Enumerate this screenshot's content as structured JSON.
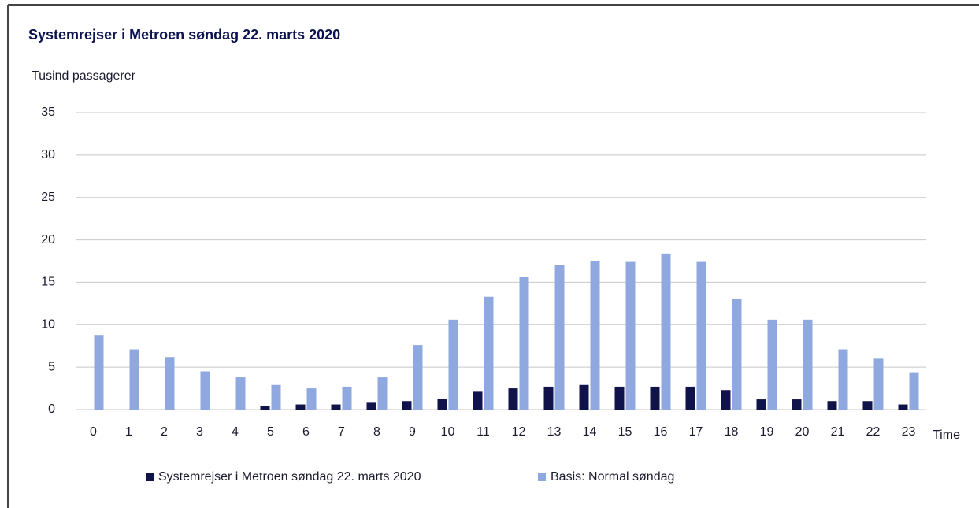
{
  "chart_data": {
    "type": "bar",
    "title": "Systemrejser i Metroen søndag 22. marts 2020",
    "y_label": "Tusind passagerer",
    "x_label": "Time",
    "categories": [
      "0",
      "1",
      "2",
      "3",
      "4",
      "5",
      "6",
      "7",
      "8",
      "9",
      "10",
      "11",
      "12",
      "13",
      "14",
      "15",
      "16",
      "17",
      "18",
      "19",
      "20",
      "21",
      "22",
      "23"
    ],
    "series": [
      {
        "name": "Systemrejser i Metroen søndag 22. marts 2020",
        "color": "#10124a",
        "values": [
          0,
          0,
          0,
          0,
          0,
          0.4,
          0.6,
          0.6,
          0.8,
          1.0,
          1.3,
          2.1,
          2.5,
          2.7,
          2.9,
          2.7,
          2.7,
          2.7,
          2.3,
          1.2,
          1.2,
          1.0,
          1.0,
          0.6
        ]
      },
      {
        "name": "Basis: Normal søndag",
        "color": "#8fa9e0",
        "values": [
          8.8,
          7.1,
          6.2,
          4.5,
          3.8,
          2.9,
          2.5,
          2.7,
          3.8,
          7.6,
          10.6,
          13.3,
          15.6,
          17.0,
          17.5,
          17.4,
          18.4,
          17.4,
          13.0,
          10.6,
          10.6,
          7.1,
          6.0,
          4.4
        ]
      }
    ],
    "ylim": [
      0,
      35
    ],
    "yticks": [
      0,
      5,
      10,
      15,
      20,
      25,
      30,
      35
    ],
    "grid": true
  }
}
